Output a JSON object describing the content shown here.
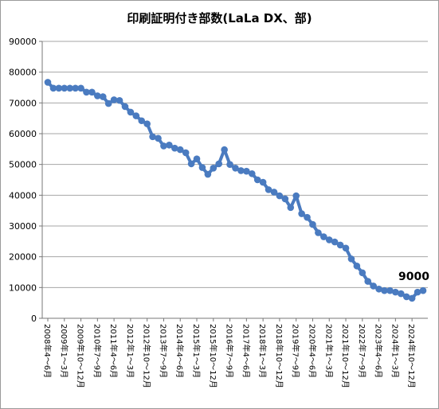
{
  "chart_data": {
    "type": "line",
    "title": "印刷証明付き部数(LaLa DX、部)",
    "xlabel": "",
    "ylabel": "",
    "ylim": [
      0,
      90000
    ],
    "y_ticks": [
      0,
      10000,
      20000,
      30000,
      40000,
      50000,
      60000,
      70000,
      80000,
      90000
    ],
    "x_tick_labels": [
      "2008年4〜6月",
      "2009年1〜3月",
      "2009年10〜12月",
      "2010年7〜9月",
      "2011年4〜6月",
      "2012年1〜3月",
      "2012年10〜12月",
      "2013年7〜9月",
      "2014年4〜6月",
      "2015年1〜3月",
      "2015年10〜12月",
      "2016年7〜9月",
      "2017年4〜6月",
      "2018年1〜3月",
      "2018年10〜12月",
      "2019年7〜9月",
      "2020年4〜6月",
      "2021年1〜3月",
      "2021年10〜12月",
      "2022年7〜9月",
      "2023年4〜6月",
      "2024年1〜3月",
      "2024年10〜12月"
    ],
    "grid": true,
    "legend": "none",
    "line_color": "#4a7bc0",
    "series": [
      {
        "values": [
          76700,
          74800,
          74800,
          74800,
          74800,
          74800,
          74800,
          73500,
          73500,
          72300,
          72000,
          69800,
          71000,
          70800,
          68800,
          67000,
          65800,
          64200,
          63200,
          59000,
          58500,
          56000,
          56300,
          55300,
          54800,
          53800,
          50200,
          51800,
          49000,
          46800,
          48800,
          50200,
          54800,
          50000,
          48800,
          48000,
          47800,
          47000,
          45000,
          44200,
          41800,
          41000,
          39800,
          38800,
          36000,
          39800,
          34000,
          32800,
          30500,
          27800,
          26500,
          25500,
          24800,
          23800,
          22800,
          19300,
          17000,
          14800,
          12000,
          10500,
          9500,
          9000,
          9000,
          8500,
          8000,
          7000,
          6500,
          8500,
          9000
        ]
      }
    ],
    "annotation": "9000"
  }
}
